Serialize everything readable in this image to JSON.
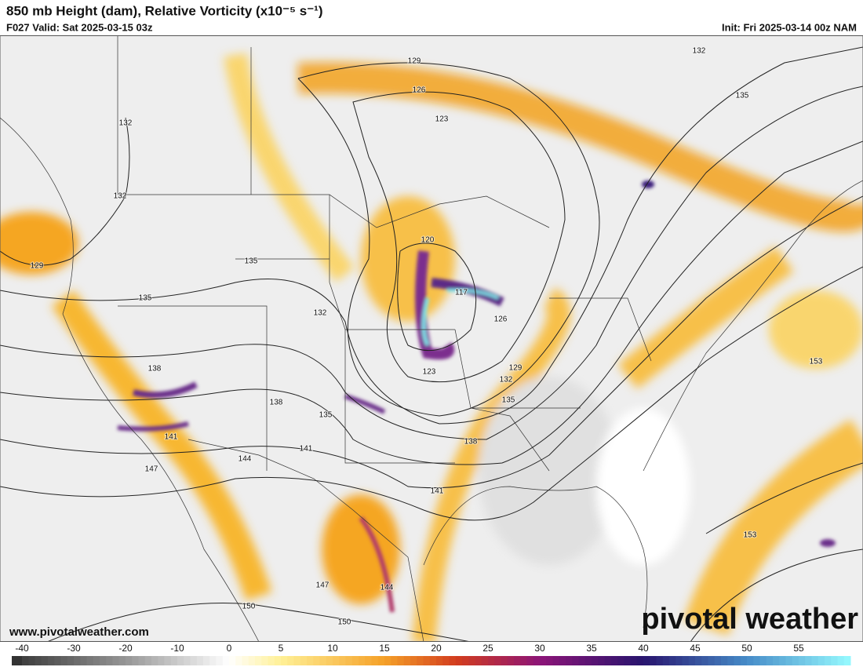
{
  "header": {
    "title": "850 mb Height (dam), Relative Vorticity (x10⁻⁵ s⁻¹)",
    "valid": "F027 Valid: Sat 2025-03-15 03z",
    "init": "Init: Fri 2025-03-14 00z NAM"
  },
  "map": {
    "contour_labels": [
      "129",
      "126",
      "123",
      "132",
      "135",
      "132",
      "132",
      "129",
      "135",
      "135",
      "132",
      "120",
      "117",
      "126",
      "123",
      "129",
      "132",
      "135",
      "138",
      "138",
      "135",
      "141",
      "141",
      "138",
      "144",
      "147",
      "141",
      "153",
      "153",
      "147",
      "144",
      "150",
      "150"
    ]
  },
  "footer": {
    "url": "www.pivotalweather.com",
    "watermark": "pivotal weather"
  },
  "colorbar": {
    "ticks": [
      -40,
      -30,
      -20,
      -10,
      0,
      5,
      10,
      15,
      20,
      25,
      30,
      35,
      40,
      45,
      50,
      55
    ]
  }
}
